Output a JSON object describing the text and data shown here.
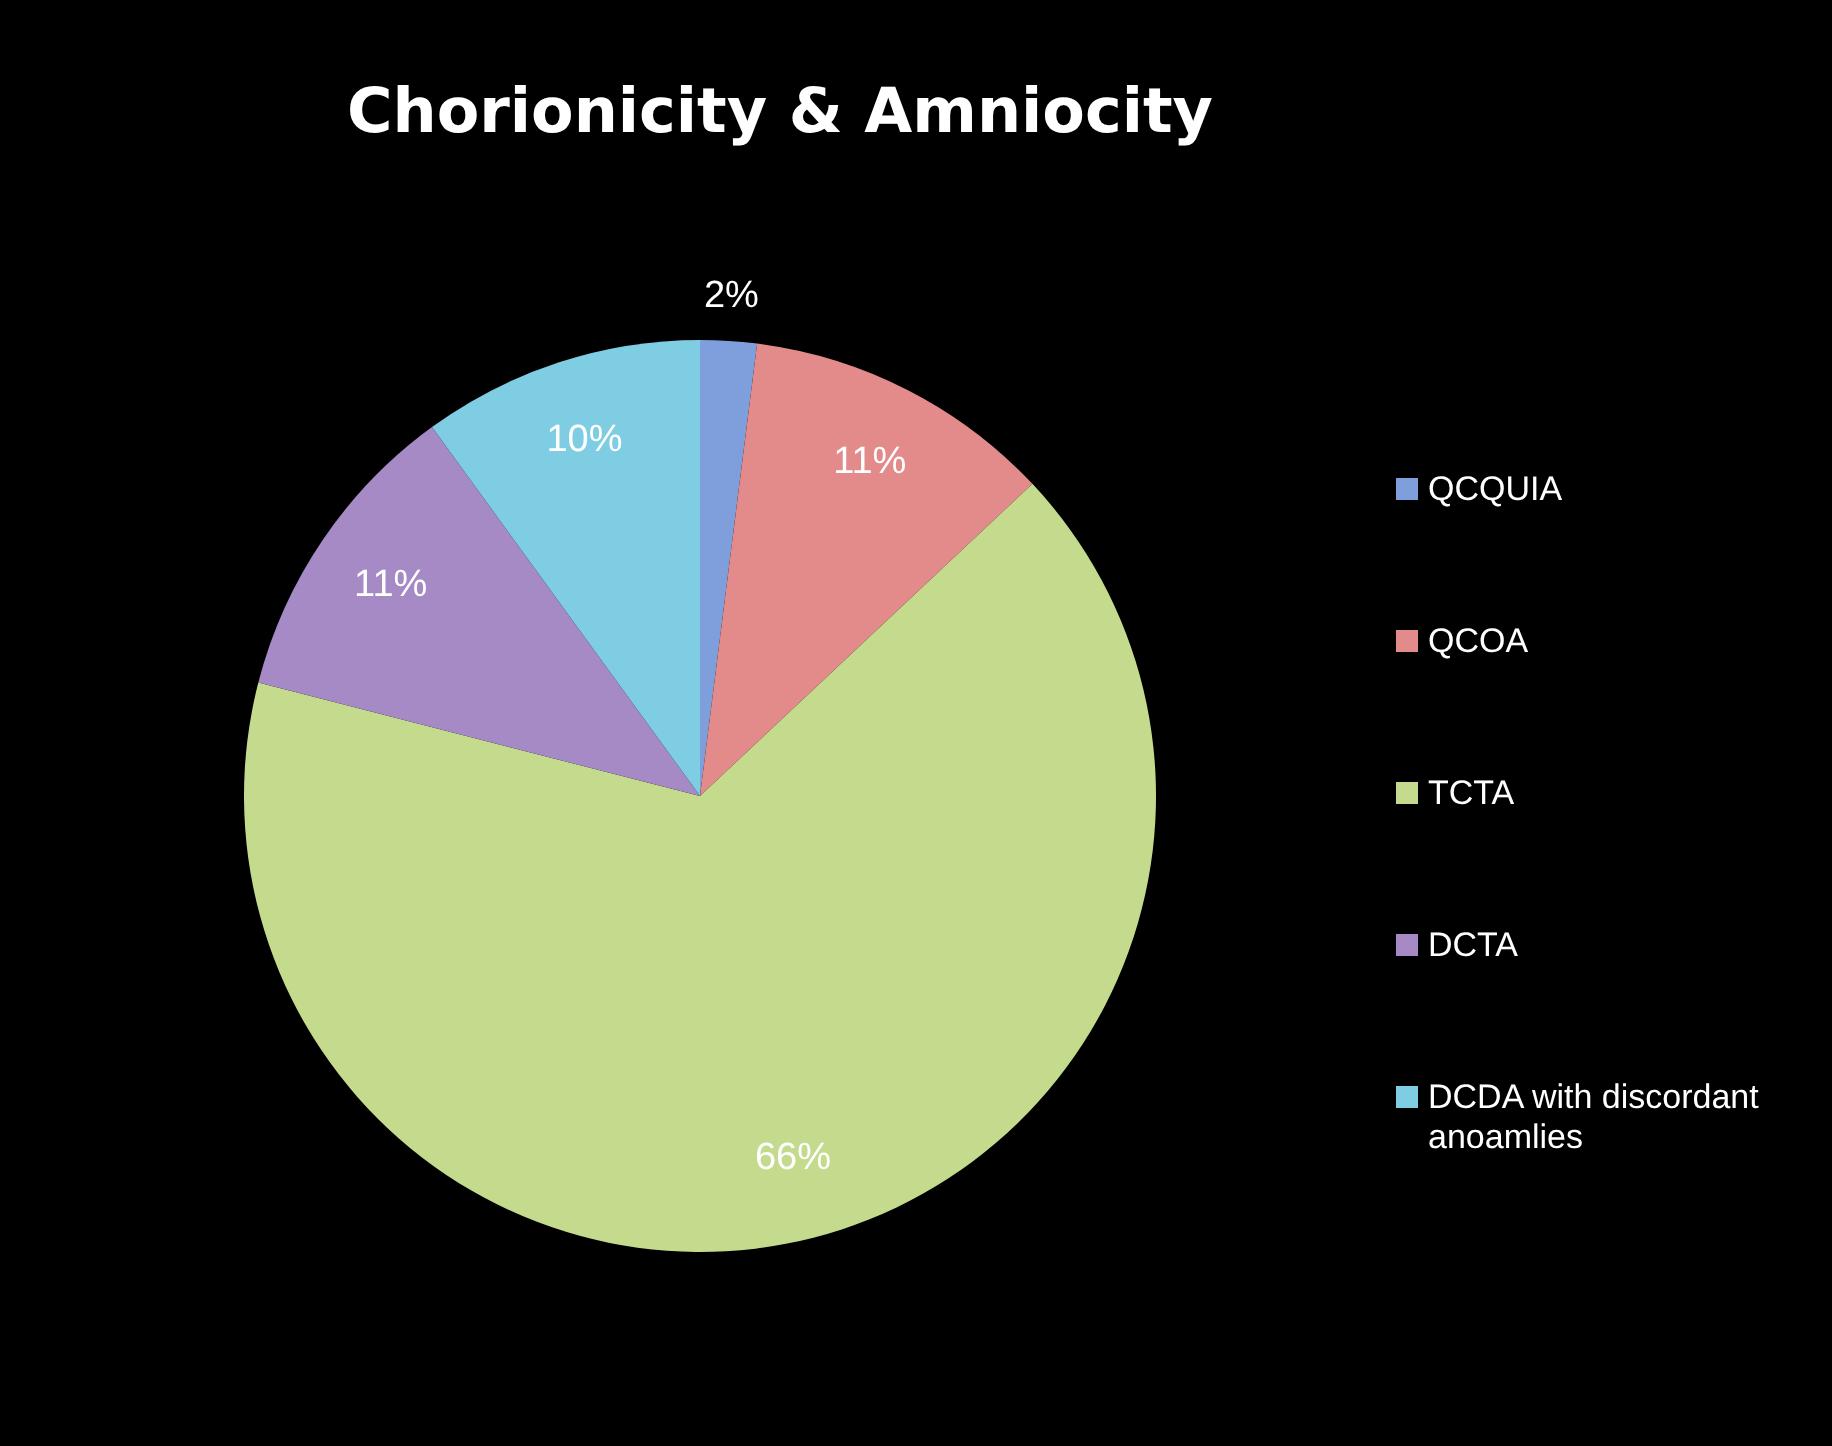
{
  "chart_data": {
    "type": "pie",
    "title": "Chorionicity & Amniocity",
    "categories": [
      "QCQUIA",
      "QCOA",
      "TCTA",
      "DCTA",
      "DCDA with discordant anoamlies"
    ],
    "values": [
      2,
      11,
      66,
      11,
      10
    ],
    "colors": [
      "#7f9fdc",
      "#e38a8a",
      "#c4db8e",
      "#a68ac6",
      "#7fcde2"
    ],
    "value_labels": [
      "2%",
      "11%",
      "66%",
      "11%",
      "10%"
    ],
    "legend": "right"
  }
}
